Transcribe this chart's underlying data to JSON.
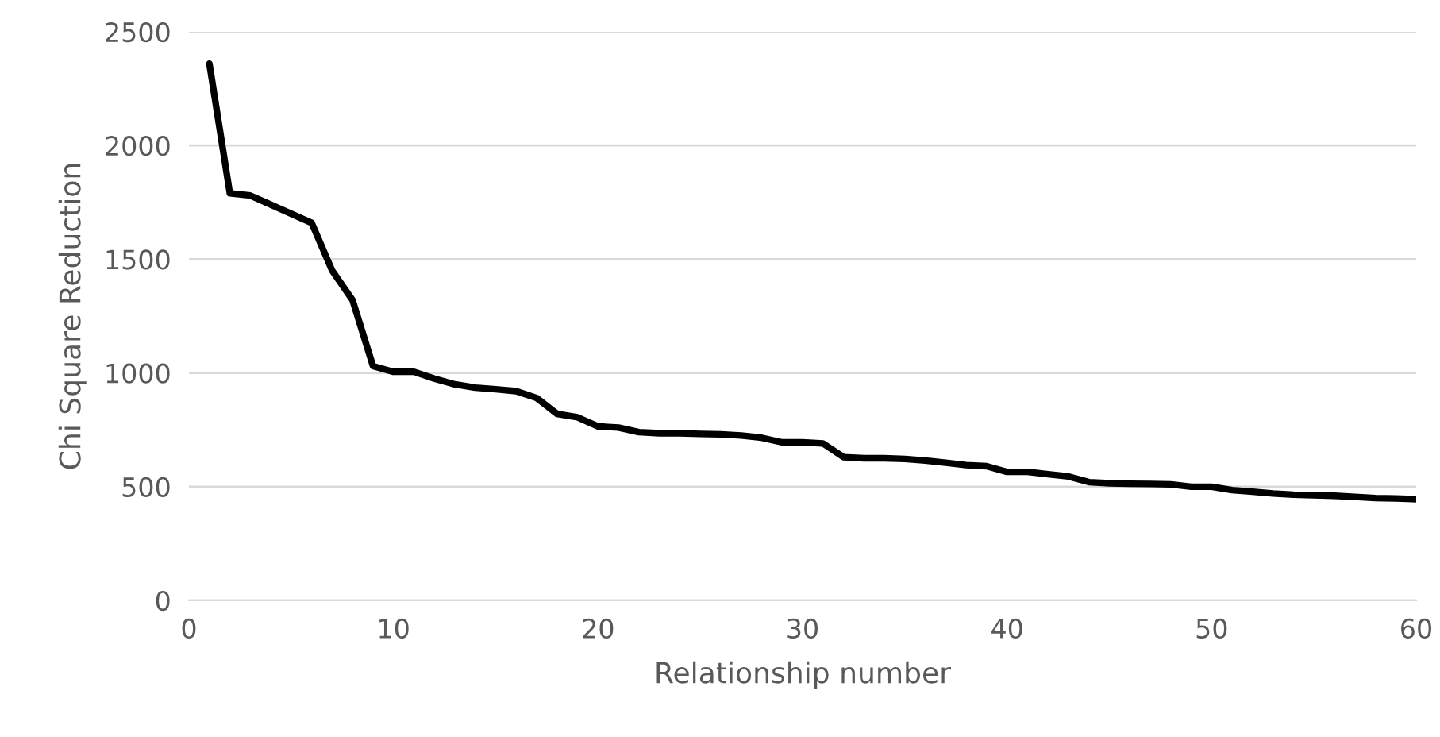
{
  "chart_data": {
    "type": "line",
    "xlabel": "Relationship number",
    "ylabel": "Chi Square Reduction",
    "x": [
      1,
      2,
      3,
      4,
      5,
      6,
      7,
      8,
      9,
      10,
      11,
      12,
      13,
      14,
      15,
      16,
      17,
      18,
      19,
      20,
      21,
      22,
      23,
      24,
      25,
      26,
      27,
      28,
      29,
      30,
      31,
      32,
      33,
      34,
      35,
      36,
      37,
      38,
      39,
      40,
      41,
      42,
      43,
      44,
      45,
      46,
      47,
      48,
      49,
      50,
      51,
      52,
      53,
      54,
      55,
      56,
      57,
      58,
      59,
      60
    ],
    "series": [
      {
        "color": "#000000",
        "values": [
          2360,
          1790,
          1780,
          1740,
          1700,
          1660,
          1450,
          1320,
          1030,
          1005,
          1005,
          975,
          950,
          935,
          928,
          920,
          890,
          820,
          805,
          765,
          760,
          740,
          735,
          735,
          732,
          730,
          725,
          715,
          695,
          695,
          690,
          630,
          625,
          625,
          622,
          615,
          605,
          595,
          590,
          565,
          565,
          555,
          545,
          520,
          515,
          513,
          512,
          510,
          500,
          500,
          485,
          478,
          470,
          465,
          462,
          460,
          455,
          450,
          448,
          445
        ]
      }
    ],
    "xlim": [
      0,
      60
    ],
    "xticks": [
      0,
      10,
      20,
      30,
      40,
      50,
      60
    ],
    "ylim": [
      0,
      2500
    ],
    "yticks": [
      0,
      500,
      1000,
      1500,
      2000,
      2500
    ],
    "grid": "y",
    "marker": "none",
    "line_style": "solid"
  }
}
